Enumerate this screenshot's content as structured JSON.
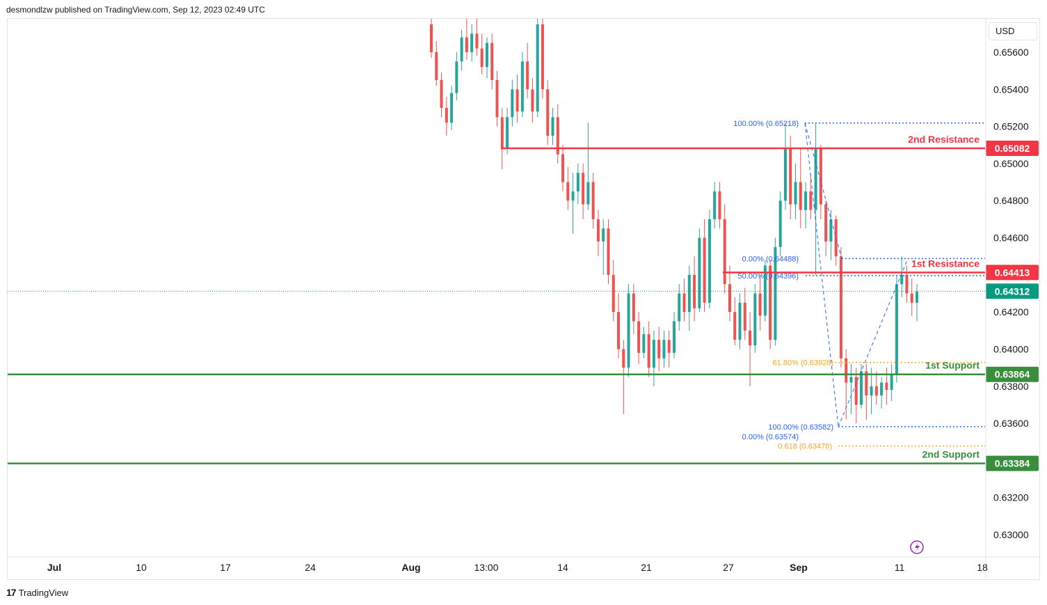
{
  "header": {
    "publisher_text": "desmondlzw published on TradingView.com, Sep 12, 2023 02:49 UTC"
  },
  "footer": {
    "logo_mark": "17",
    "logo_text": "TradingView"
  },
  "price_axis": {
    "currency": "USD",
    "tick_labels": [
      "0.65600",
      "0.65400",
      "0.65200",
      "0.65000",
      "0.64800",
      "0.64600",
      "0.64200",
      "0.64000",
      "0.63800",
      "0.63600",
      "0.63200",
      "0.63000"
    ],
    "tick_values": [
      0.656,
      0.654,
      0.652,
      0.65,
      0.648,
      0.646,
      0.642,
      0.64,
      0.638,
      0.636,
      0.632,
      0.63
    ]
  },
  "colors": {
    "up": "#26a69a",
    "down": "#ef5350",
    "resistance": "#f23645",
    "support": "#388e3c",
    "fib_blue": "#2962ff",
    "fib_orange": "#f5a623",
    "last_price": "#089981"
  },
  "chart_data": {
    "type": "candlestick",
    "title": "",
    "ylim": [
      0.6288,
      0.6578
    ],
    "x_tick_labels": [
      {
        "label": "Jul",
        "bar": 6
      },
      {
        "label": "10",
        "bar": 22
      },
      {
        "label": "17",
        "bar": 38
      },
      {
        "label": "24",
        "bar": 54
      },
      {
        "label": "Aug",
        "bar": 70
      },
      {
        "label": "13:00",
        "bar": 86
      },
      {
        "label": "14",
        "bar": 102
      },
      {
        "label": "21",
        "bar": 118
      },
      {
        "label": "27",
        "bar": 134
      },
      {
        "label": "Sep",
        "bar": 150
      },
      {
        "label": "11",
        "bar": 166
      },
      {
        "label": "18",
        "bar": 182
      }
    ],
    "levels": [
      {
        "name": "2nd Resistance",
        "value_label": "0.65082",
        "value": 0.65082,
        "kind": "resistance",
        "start_date": "Aug 9"
      },
      {
        "name": "1st Resistance",
        "value_label": "0.64413",
        "value": 0.64413,
        "kind": "resistance",
        "start_date": "Aug 27"
      },
      {
        "name": "1st Support",
        "value_label": "0.63864",
        "value": 0.63864,
        "kind": "support"
      },
      {
        "name": "2nd Support",
        "value_label": "0.63384",
        "value": 0.63384,
        "kind": "support"
      }
    ],
    "last_price": {
      "value_label": "0.64312",
      "value": 0.64312
    },
    "fib_labels": [
      {
        "text": "100.00% (0.65218)",
        "value": 0.65218,
        "color": "blue"
      },
      {
        "text": "0.00% (0.64488)",
        "value": 0.64488,
        "color": "blue"
      },
      {
        "text": "50.00% (0.64396)",
        "value": 0.64396,
        "color": "blue"
      },
      {
        "text": "61.80% (0.63928)",
        "value": 0.63928,
        "color": "orange"
      },
      {
        "text": "100.00% (0.63582)",
        "value": 0.63582,
        "color": "blue"
      },
      {
        "text": "0.00% (0.63574)",
        "value": 0.63574,
        "color": "blue"
      },
      {
        "text": "0.618 (0.63478)",
        "value": 0.63478,
        "color": "orange"
      }
    ],
    "candles": [
      {
        "o": 0.6575,
        "h": 0.6578,
        "l": 0.6557,
        "c": 0.656
      },
      {
        "o": 0.656,
        "h": 0.6566,
        "l": 0.6542,
        "c": 0.6545
      },
      {
        "o": 0.6545,
        "h": 0.6549,
        "l": 0.6525,
        "c": 0.653
      },
      {
        "o": 0.653,
        "h": 0.6536,
        "l": 0.6515,
        "c": 0.6522
      },
      {
        "o": 0.6522,
        "h": 0.6542,
        "l": 0.6518,
        "c": 0.6538
      },
      {
        "o": 0.6538,
        "h": 0.656,
        "l": 0.6534,
        "c": 0.6555
      },
      {
        "o": 0.6555,
        "h": 0.6572,
        "l": 0.655,
        "c": 0.6568
      },
      {
        "o": 0.6568,
        "h": 0.6578,
        "l": 0.6556,
        "c": 0.656
      },
      {
        "o": 0.656,
        "h": 0.6575,
        "l": 0.6555,
        "c": 0.657
      },
      {
        "o": 0.657,
        "h": 0.6578,
        "l": 0.6558,
        "c": 0.6562
      },
      {
        "o": 0.6562,
        "h": 0.657,
        "l": 0.6548,
        "c": 0.6552
      },
      {
        "o": 0.6552,
        "h": 0.6568,
        "l": 0.6546,
        "c": 0.6565
      },
      {
        "o": 0.6565,
        "h": 0.657,
        "l": 0.654,
        "c": 0.6545
      },
      {
        "o": 0.6545,
        "h": 0.655,
        "l": 0.652,
        "c": 0.6525
      },
      {
        "o": 0.6525,
        "h": 0.653,
        "l": 0.6497,
        "c": 0.6508
      },
      {
        "o": 0.6508,
        "h": 0.653,
        "l": 0.6505,
        "c": 0.6525
      },
      {
        "o": 0.6525,
        "h": 0.6545,
        "l": 0.652,
        "c": 0.654
      },
      {
        "o": 0.654,
        "h": 0.6548,
        "l": 0.6522,
        "c": 0.6528
      },
      {
        "o": 0.6528,
        "h": 0.656,
        "l": 0.6525,
        "c": 0.6555
      },
      {
        "o": 0.6555,
        "h": 0.6565,
        "l": 0.6535,
        "c": 0.654
      },
      {
        "o": 0.654,
        "h": 0.6546,
        "l": 0.6522,
        "c": 0.6528
      },
      {
        "o": 0.6528,
        "h": 0.6578,
        "l": 0.6525,
        "c": 0.6575
      },
      {
        "o": 0.6575,
        "h": 0.6578,
        "l": 0.6535,
        "c": 0.654
      },
      {
        "o": 0.654,
        "h": 0.6545,
        "l": 0.651,
        "c": 0.6515
      },
      {
        "o": 0.6515,
        "h": 0.653,
        "l": 0.651,
        "c": 0.6525
      },
      {
        "o": 0.6525,
        "h": 0.6532,
        "l": 0.65,
        "c": 0.6505
      },
      {
        "o": 0.6505,
        "h": 0.651,
        "l": 0.6485,
        "c": 0.649
      },
      {
        "o": 0.649,
        "h": 0.6498,
        "l": 0.6475,
        "c": 0.648
      },
      {
        "o": 0.648,
        "h": 0.6495,
        "l": 0.6462,
        "c": 0.6485
      },
      {
        "o": 0.6485,
        "h": 0.65,
        "l": 0.6478,
        "c": 0.6495
      },
      {
        "o": 0.6495,
        "h": 0.65,
        "l": 0.647,
        "c": 0.6478
      },
      {
        "o": 0.6478,
        "h": 0.6522,
        "l": 0.6475,
        "c": 0.649
      },
      {
        "o": 0.649,
        "h": 0.6495,
        "l": 0.6465,
        "c": 0.647
      },
      {
        "o": 0.647,
        "h": 0.6475,
        "l": 0.645,
        "c": 0.6458
      },
      {
        "o": 0.6458,
        "h": 0.647,
        "l": 0.644,
        "c": 0.6465
      },
      {
        "o": 0.6465,
        "h": 0.647,
        "l": 0.6435,
        "c": 0.644
      },
      {
        "o": 0.644,
        "h": 0.6448,
        "l": 0.6415,
        "c": 0.642
      },
      {
        "o": 0.642,
        "h": 0.643,
        "l": 0.6395,
        "c": 0.64
      },
      {
        "o": 0.64,
        "h": 0.6405,
        "l": 0.6365,
        "c": 0.639
      },
      {
        "o": 0.639,
        "h": 0.6435,
        "l": 0.6385,
        "c": 0.643
      },
      {
        "o": 0.643,
        "h": 0.6435,
        "l": 0.6408,
        "c": 0.6415
      },
      {
        "o": 0.6415,
        "h": 0.642,
        "l": 0.6392,
        "c": 0.6398
      },
      {
        "o": 0.6398,
        "h": 0.6412,
        "l": 0.6395,
        "c": 0.6408
      },
      {
        "o": 0.6408,
        "h": 0.6415,
        "l": 0.6385,
        "c": 0.639
      },
      {
        "o": 0.639,
        "h": 0.641,
        "l": 0.638,
        "c": 0.6405
      },
      {
        "o": 0.6405,
        "h": 0.6412,
        "l": 0.6388,
        "c": 0.6395
      },
      {
        "o": 0.6395,
        "h": 0.641,
        "l": 0.639,
        "c": 0.6405
      },
      {
        "o": 0.6405,
        "h": 0.641,
        "l": 0.639,
        "c": 0.6398
      },
      {
        "o": 0.6398,
        "h": 0.642,
        "l": 0.6395,
        "c": 0.6415
      },
      {
        "o": 0.6415,
        "h": 0.6435,
        "l": 0.641,
        "c": 0.643
      },
      {
        "o": 0.643,
        "h": 0.6438,
        "l": 0.6415,
        "c": 0.642
      },
      {
        "o": 0.642,
        "h": 0.6445,
        "l": 0.641,
        "c": 0.644
      },
      {
        "o": 0.644,
        "h": 0.645,
        "l": 0.6415,
        "c": 0.6422
      },
      {
        "o": 0.6422,
        "h": 0.6465,
        "l": 0.642,
        "c": 0.646
      },
      {
        "o": 0.646,
        "h": 0.647,
        "l": 0.642,
        "c": 0.6425
      },
      {
        "o": 0.6425,
        "h": 0.6475,
        "l": 0.6422,
        "c": 0.647
      },
      {
        "o": 0.647,
        "h": 0.649,
        "l": 0.6465,
        "c": 0.6485
      },
      {
        "o": 0.6485,
        "h": 0.649,
        "l": 0.6465,
        "c": 0.647
      },
      {
        "o": 0.647,
        "h": 0.6478,
        "l": 0.643,
        "c": 0.6435
      },
      {
        "o": 0.6435,
        "h": 0.6445,
        "l": 0.6415,
        "c": 0.642
      },
      {
        "o": 0.642,
        "h": 0.6428,
        "l": 0.6402,
        "c": 0.6405
      },
      {
        "o": 0.6405,
        "h": 0.643,
        "l": 0.64,
        "c": 0.6425
      },
      {
        "o": 0.6425,
        "h": 0.6433,
        "l": 0.6405,
        "c": 0.641
      },
      {
        "o": 0.641,
        "h": 0.642,
        "l": 0.638,
        "c": 0.6402
      },
      {
        "o": 0.6402,
        "h": 0.6435,
        "l": 0.6398,
        "c": 0.643
      },
      {
        "o": 0.643,
        "h": 0.644,
        "l": 0.641,
        "c": 0.6418
      },
      {
        "o": 0.6418,
        "h": 0.6448,
        "l": 0.6415,
        "c": 0.6445
      },
      {
        "o": 0.6445,
        "h": 0.6448,
        "l": 0.64,
        "c": 0.6405
      },
      {
        "o": 0.6405,
        "h": 0.646,
        "l": 0.6402,
        "c": 0.6455
      },
      {
        "o": 0.6455,
        "h": 0.6485,
        "l": 0.645,
        "c": 0.648
      },
      {
        "o": 0.648,
        "h": 0.6522,
        "l": 0.6475,
        "c": 0.6508
      },
      {
        "o": 0.6508,
        "h": 0.6515,
        "l": 0.647,
        "c": 0.6478
      },
      {
        "o": 0.6478,
        "h": 0.65,
        "l": 0.647,
        "c": 0.649
      },
      {
        "o": 0.649,
        "h": 0.6508,
        "l": 0.6465,
        "c": 0.6475
      },
      {
        "o": 0.6475,
        "h": 0.649,
        "l": 0.6465,
        "c": 0.6485
      },
      {
        "o": 0.6485,
        "h": 0.6495,
        "l": 0.647,
        "c": 0.6475
      },
      {
        "o": 0.6475,
        "h": 0.6522,
        "l": 0.644,
        "c": 0.6508
      },
      {
        "o": 0.6508,
        "h": 0.651,
        "l": 0.647,
        "c": 0.6478
      },
      {
        "o": 0.6478,
        "h": 0.648,
        "l": 0.645,
        "c": 0.6458
      },
      {
        "o": 0.6458,
        "h": 0.6475,
        "l": 0.6448,
        "c": 0.647
      },
      {
        "o": 0.647,
        "h": 0.6472,
        "l": 0.6445,
        "c": 0.645
      },
      {
        "o": 0.645,
        "h": 0.6455,
        "l": 0.639,
        "c": 0.6395
      },
      {
        "o": 0.6395,
        "h": 0.64,
        "l": 0.6362,
        "c": 0.6382
      },
      {
        "o": 0.6382,
        "h": 0.6392,
        "l": 0.6365,
        "c": 0.6385
      },
      {
        "o": 0.6385,
        "h": 0.639,
        "l": 0.636,
        "c": 0.637
      },
      {
        "o": 0.637,
        "h": 0.6392,
        "l": 0.6368,
        "c": 0.6388
      },
      {
        "o": 0.6388,
        "h": 0.6392,
        "l": 0.6362,
        "c": 0.6375
      },
      {
        "o": 0.6375,
        "h": 0.639,
        "l": 0.6365,
        "c": 0.638
      },
      {
        "o": 0.638,
        "h": 0.6388,
        "l": 0.637,
        "c": 0.6375
      },
      {
        "o": 0.6375,
        "h": 0.6385,
        "l": 0.6368,
        "c": 0.6382
      },
      {
        "o": 0.6382,
        "h": 0.639,
        "l": 0.637,
        "c": 0.6378
      },
      {
        "o": 0.6378,
        "h": 0.6392,
        "l": 0.6372,
        "c": 0.6386
      },
      {
        "o": 0.6386,
        "h": 0.644,
        "l": 0.6382,
        "c": 0.6435
      },
      {
        "o": 0.6435,
        "h": 0.645,
        "l": 0.6428,
        "c": 0.644
      },
      {
        "o": 0.644,
        "h": 0.6445,
        "l": 0.6425,
        "c": 0.643
      },
      {
        "o": 0.643,
        "h": 0.6438,
        "l": 0.6418,
        "c": 0.6425
      },
      {
        "o": 0.6425,
        "h": 0.6435,
        "l": 0.6415,
        "c": 0.6431
      }
    ]
  }
}
